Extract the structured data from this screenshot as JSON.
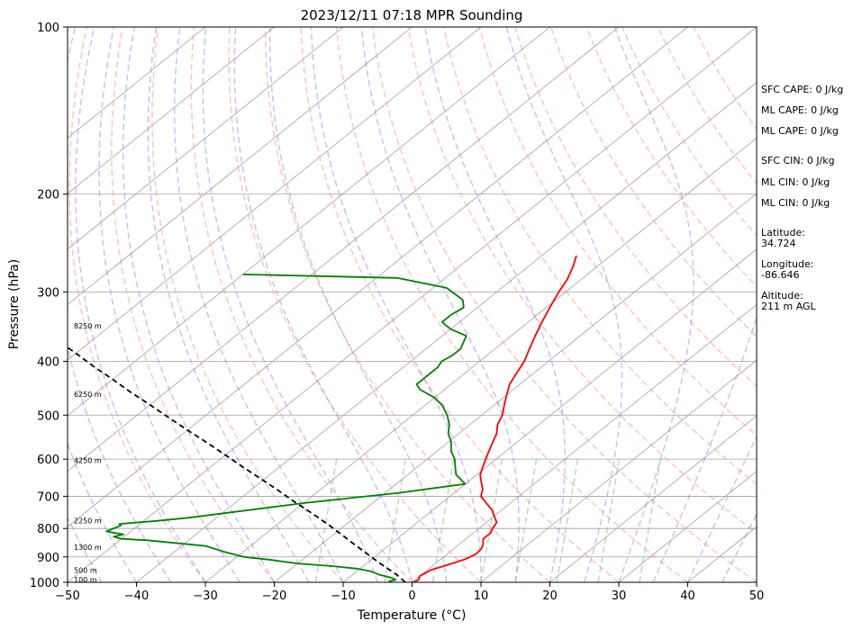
{
  "colors": {
    "temperature": "#ff0000",
    "dewpoint": "#008000",
    "parcel": "#000000",
    "dry_adiabat": "#ff8c8c",
    "moist_adiabat": "#8c7cff",
    "mixing_ratio": "#80c080",
    "isotherm": "#a0a0a0",
    "isobar": "#a0a0a0"
  },
  "chart_data": {
    "type": "line",
    "title": "2023/12/11 07:18 MPR Sounding",
    "xlabel": "Temperature (°C)",
    "ylabel": "Pressure (hPa)",
    "xlim": [
      -50,
      50
    ],
    "ylim": [
      1000,
      100
    ],
    "y_scale": "log",
    "x_ticks": [
      -50,
      -40,
      -30,
      -20,
      -10,
      0,
      10,
      20,
      30,
      40,
      50
    ],
    "x_tick_labels": [
      "−50",
      "−40",
      "−30",
      "−20",
      "−10",
      "0",
      "10",
      "20",
      "30",
      "40",
      "50"
    ],
    "y_ticks": [
      1000,
      900,
      800,
      700,
      600,
      500,
      400,
      300,
      200,
      100
    ],
    "grid": true,
    "isotherms_c": [
      -130,
      -120,
      -110,
      -100,
      -90,
      -80,
      -70,
      -60,
      -50,
      -40,
      -30,
      -20,
      -10,
      0,
      10,
      20,
      30,
      40,
      50
    ],
    "dry_adiabats_c": [
      -30,
      -20,
      -10,
      0,
      10,
      20,
      30,
      40,
      50,
      60,
      70,
      80,
      90,
      100,
      110,
      120,
      130,
      140
    ],
    "moist_adiabats_c": [
      -45,
      -40,
      -35,
      -30,
      -25,
      -20,
      -15,
      -10,
      -5,
      0,
      5,
      10,
      15,
      20,
      25,
      30,
      35,
      40,
      45
    ],
    "mixing_ratio_lines_x_at_1000": [
      -14,
      -4,
      3,
      10,
      15,
      21,
      27,
      33
    ],
    "series": [
      {
        "key": "temperature",
        "points": [
          [
            0.2,
            1000
          ],
          [
            0.5,
            990
          ],
          [
            0.0,
            975
          ],
          [
            0.5,
            950
          ],
          [
            2.0,
            930
          ],
          [
            3.5,
            910
          ],
          [
            4.2,
            890
          ],
          [
            4.0,
            870
          ],
          [
            3.5,
            855
          ],
          [
            2.5,
            835
          ],
          [
            2.5,
            815
          ],
          [
            2.0,
            800
          ],
          [
            1.5,
            780
          ],
          [
            0.0,
            760
          ],
          [
            -1.5,
            740
          ],
          [
            -3.5,
            720
          ],
          [
            -5.5,
            700
          ],
          [
            -6.5,
            680
          ],
          [
            -8.0,
            660
          ],
          [
            -9.5,
            640
          ],
          [
            -10.5,
            620
          ],
          [
            -11.5,
            600
          ],
          [
            -12.5,
            580
          ],
          [
            -13.5,
            560
          ],
          [
            -14.5,
            540
          ],
          [
            -16.0,
            520
          ],
          [
            -17.0,
            500
          ],
          [
            -18.5,
            480
          ],
          [
            -20.0,
            460
          ],
          [
            -21.5,
            440
          ],
          [
            -22.5,
            420
          ],
          [
            -23.5,
            400
          ],
          [
            -25.0,
            380
          ],
          [
            -26.5,
            360
          ],
          [
            -28.0,
            340
          ],
          [
            -29.5,
            320
          ],
          [
            -31.0,
            300
          ],
          [
            -32.0,
            285
          ],
          [
            -33.5,
            270
          ],
          [
            -35.0,
            258
          ]
        ]
      },
      {
        "key": "dewpoint",
        "points": [
          [
            -3.0,
            1000
          ],
          [
            -3.5,
            995
          ],
          [
            -2.8,
            990
          ],
          [
            -4.0,
            980
          ],
          [
            -6.0,
            970
          ],
          [
            -8.0,
            955
          ],
          [
            -10.5,
            945
          ],
          [
            -14.5,
            935
          ],
          [
            -20.0,
            925
          ],
          [
            -25.0,
            910
          ],
          [
            -29.0,
            900
          ],
          [
            -33.0,
            880
          ],
          [
            -36.5,
            860
          ],
          [
            -46.0,
            840
          ],
          [
            -50.0,
            835
          ],
          [
            -51.5,
            828
          ],
          [
            -50.5,
            820
          ],
          [
            -53.5,
            810
          ],
          [
            -52.5,
            790
          ],
          [
            -53.0,
            785
          ],
          [
            -48.0,
            775
          ],
          [
            -44.0,
            765
          ],
          [
            -30.0,
            720
          ],
          [
            -18.0,
            690
          ],
          [
            -10.0,
            665
          ],
          [
            -13.0,
            640
          ],
          [
            -14.5,
            620
          ],
          [
            -16.0,
            600
          ],
          [
            -18.0,
            580
          ],
          [
            -19.5,
            560
          ],
          [
            -21.5,
            540
          ],
          [
            -23.0,
            520
          ],
          [
            -25.0,
            500
          ],
          [
            -27.5,
            480
          ],
          [
            -30.0,
            465
          ],
          [
            -33.5,
            450
          ],
          [
            -35.0,
            440
          ],
          [
            -35.0,
            430
          ],
          [
            -35.0,
            420
          ],
          [
            -35.0,
            410
          ],
          [
            -35.5,
            400
          ],
          [
            -35.0,
            390
          ],
          [
            -35.0,
            380
          ],
          [
            -36.5,
            360
          ],
          [
            -40.0,
            350
          ],
          [
            -42.5,
            340
          ],
          [
            -42.5,
            330
          ],
          [
            -42.0,
            320
          ],
          [
            -43.5,
            310
          ],
          [
            -48.0,
            295
          ],
          [
            -57.0,
            283
          ],
          [
            -80.0,
            279
          ]
        ]
      },
      {
        "key": "parcel",
        "points": [
          [
            -1.0,
            1000
          ],
          [
            -3.5,
            970
          ],
          [
            -6.0,
            945
          ],
          [
            -8.0,
            925
          ],
          [
            -10.0,
            905
          ],
          [
            -12.0,
            885
          ],
          [
            -14.0,
            866
          ],
          [
            -16.0,
            847
          ],
          [
            -18.0,
            828
          ],
          [
            -20.0,
            810
          ],
          [
            -22.0,
            792
          ],
          [
            -25.0,
            767
          ],
          [
            -28.0,
            743
          ],
          [
            -32.0,
            713
          ],
          [
            -36.0,
            683
          ],
          [
            -40.0,
            655
          ],
          [
            -45.0,
            622
          ],
          [
            -50.0,
            590
          ],
          [
            -55.0,
            560
          ],
          [
            -60.0,
            532
          ],
          [
            -65.0,
            505
          ],
          [
            -70.0,
            479
          ],
          [
            -75.0,
            455
          ],
          [
            -80.0,
            431
          ],
          [
            -85.0,
            409
          ],
          [
            -90.0,
            387
          ],
          [
            -95.0,
            367
          ],
          [
            -100.0,
            347
          ],
          [
            -105.0,
            328
          ],
          [
            -110.0,
            310
          ],
          [
            -115.0,
            293
          ]
        ]
      }
    ],
    "height_labels": [
      {
        "text": "100 m",
        "p": 988
      },
      {
        "text": "500 m",
        "p": 950
      },
      {
        "text": "1300 m",
        "p": 865
      },
      {
        "text": "2250 m",
        "p": 775
      },
      {
        "text": "4250 m",
        "p": 603
      },
      {
        "text": "6250 m",
        "p": 458
      },
      {
        "text": "8250 m",
        "p": 345
      }
    ],
    "annotations": [
      "SFC CAPE: 0 J/kg",
      "ML CAPE: 0 J/kg",
      "ML CAPE: 0 J/kg",
      "SFC CIN: 0 J/kg",
      "ML CIN: 0 J/kg",
      "ML CIN: 0 J/kg",
      "Latitude:",
      "34.724",
      "Longitude:",
      "-86.646",
      "Altitude:",
      "211 m AGL"
    ]
  }
}
